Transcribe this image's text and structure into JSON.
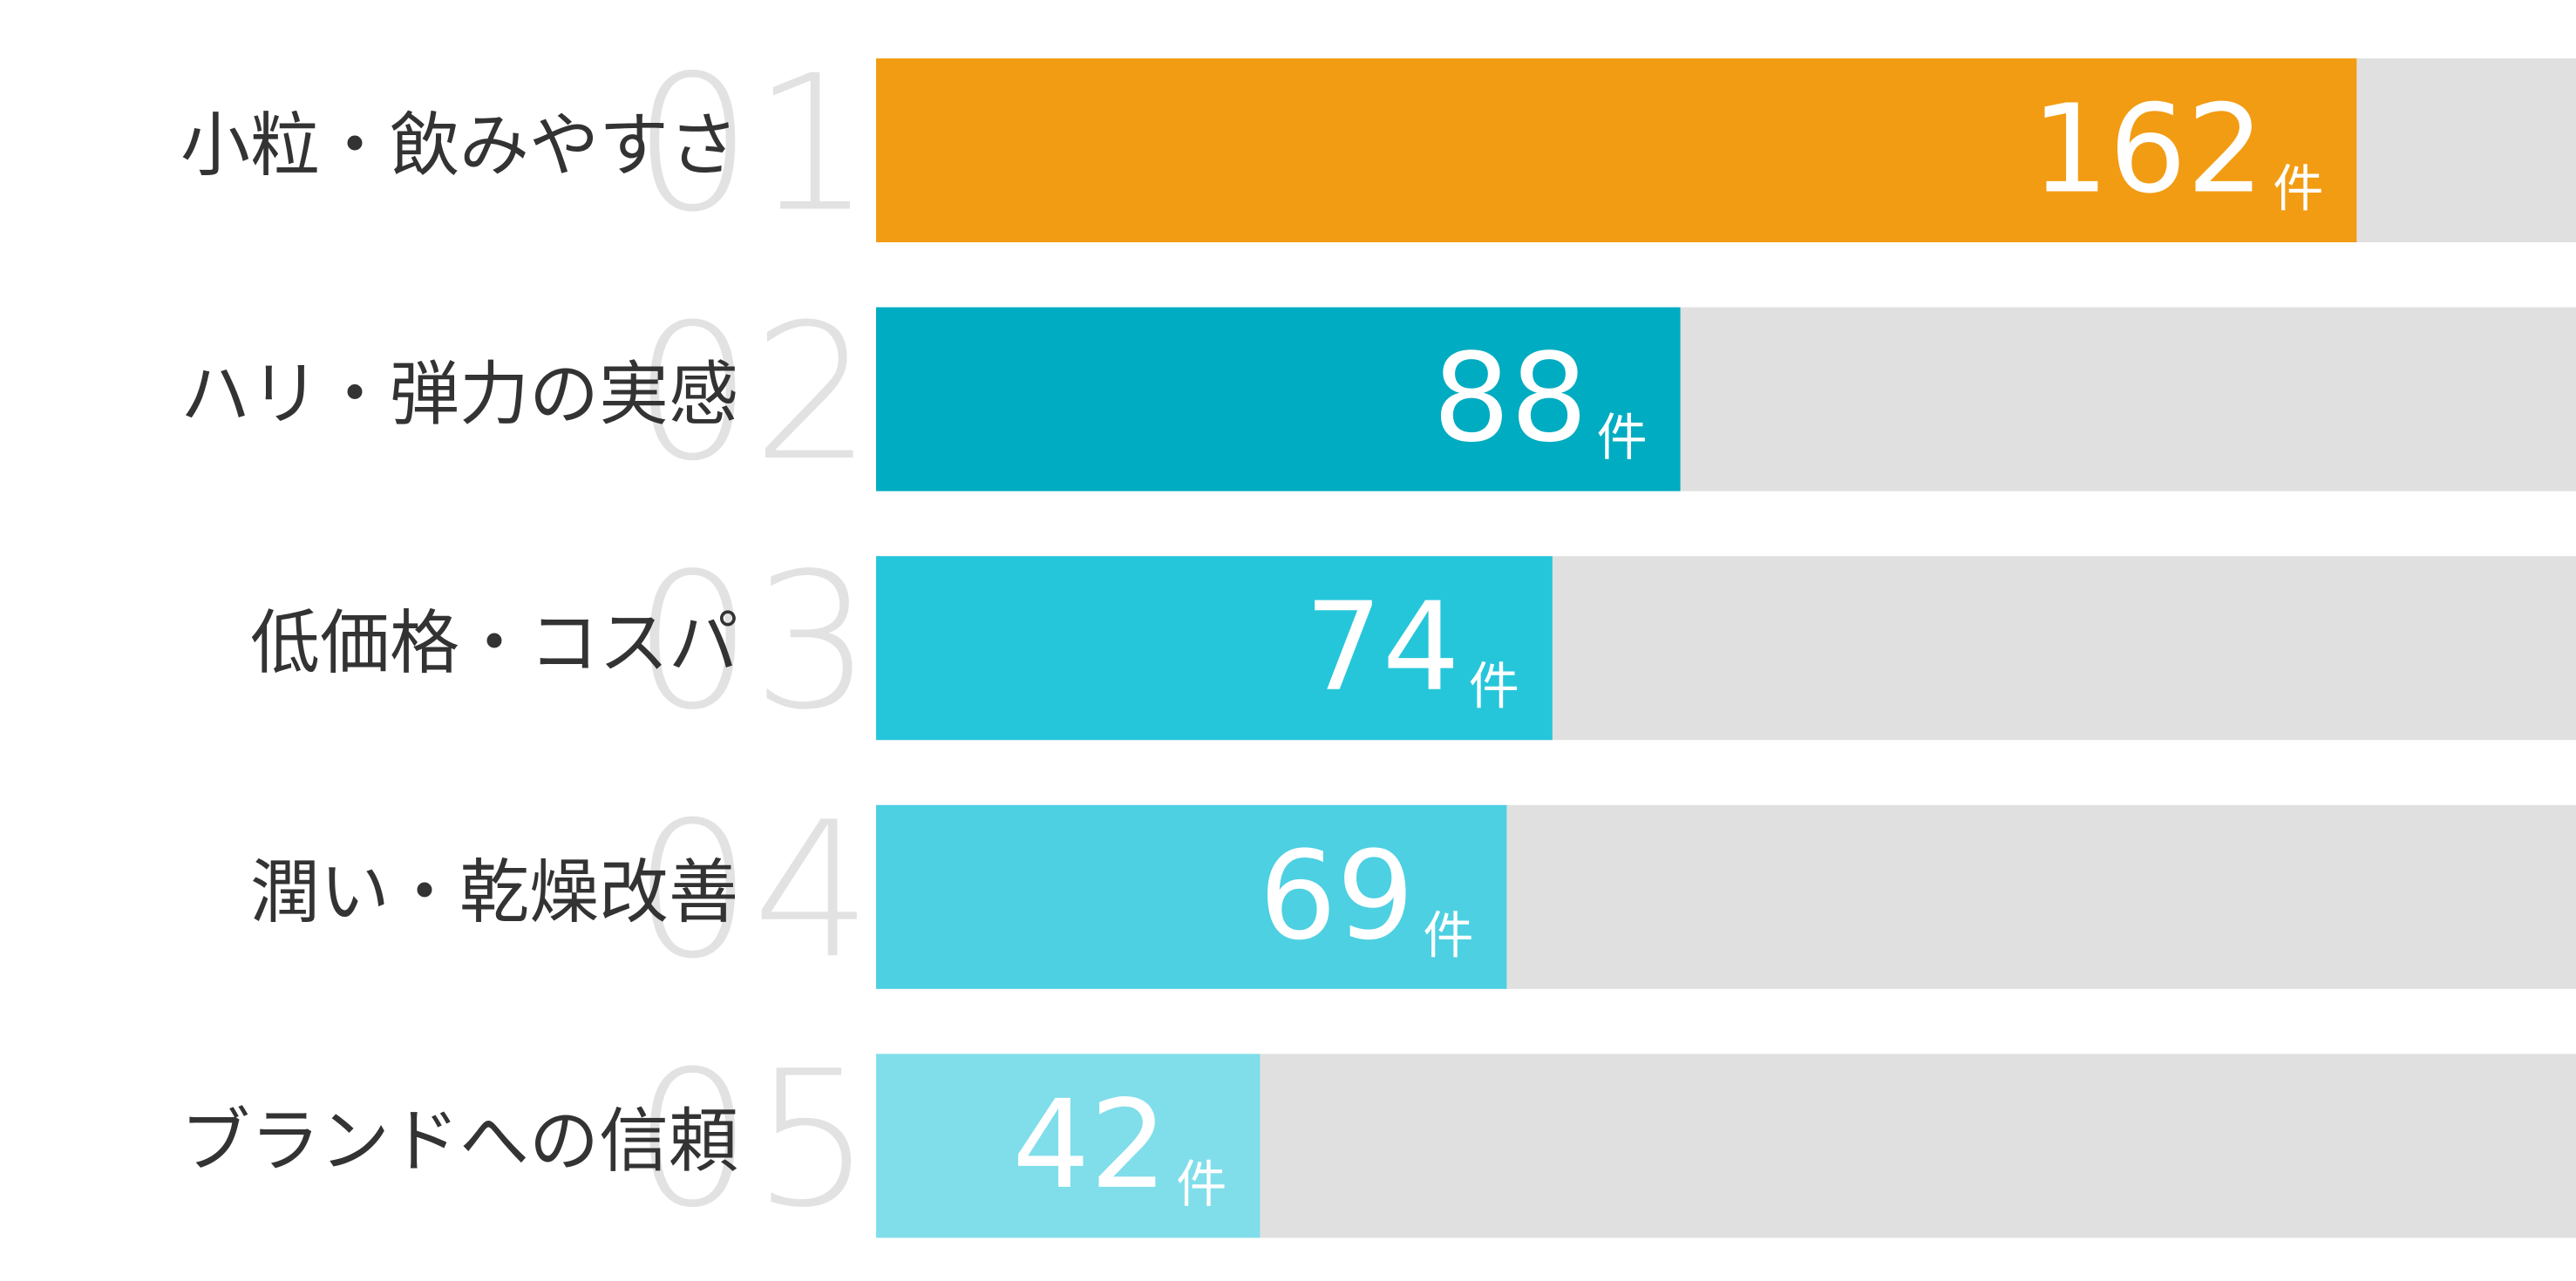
{
  "chart_data": {
    "type": "bar",
    "orientation": "horizontal",
    "categories": [
      "小粒・飲みやすさ",
      "ハリ・弾力の実感",
      "低価格・コスパ",
      "潤い・乾燥改善",
      "ブランドへの信頼"
    ],
    "ranks": [
      "01",
      "02",
      "03",
      "04",
      "05"
    ],
    "values": [
      162,
      88,
      74,
      69,
      42
    ],
    "unit": "件",
    "colors": [
      "#f29c13",
      "#00acc1",
      "#26c6da",
      "#4dd0e1",
      "#80deea"
    ],
    "track_color": "#e0e0e0",
    "xlim": [
      0,
      186
    ]
  }
}
